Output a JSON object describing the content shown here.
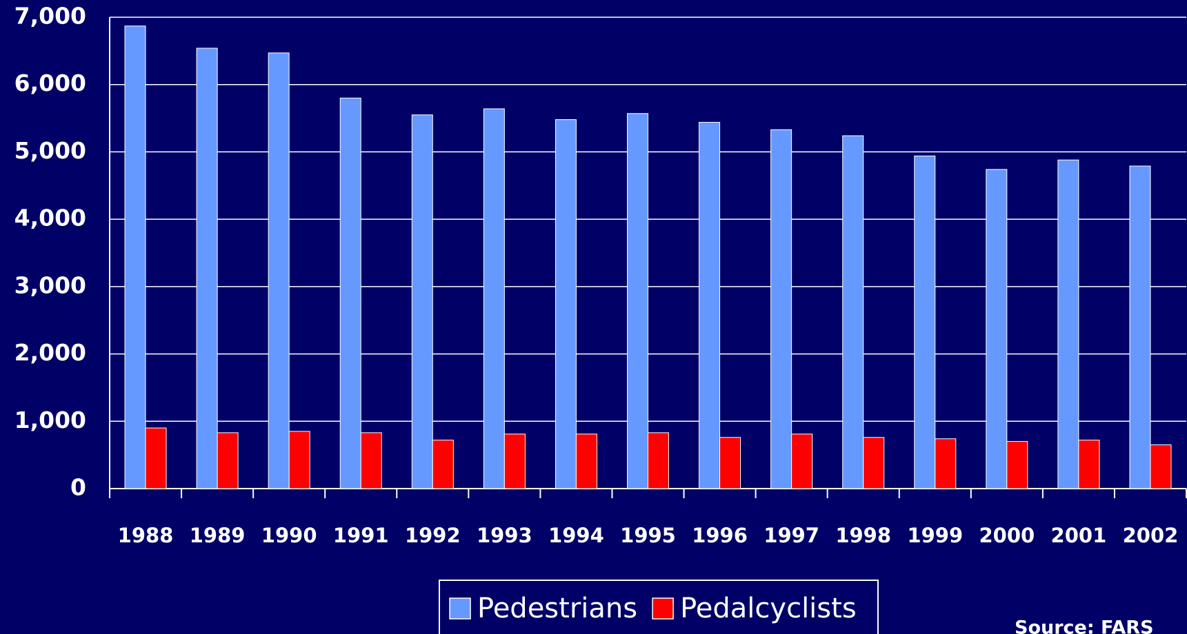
{
  "chart_data": {
    "type": "bar",
    "categories": [
      "1988",
      "1989",
      "1990",
      "1991",
      "1992",
      "1993",
      "1994",
      "1995",
      "1996",
      "1997",
      "1998",
      "1999",
      "2000",
      "2001",
      "2002"
    ],
    "series": [
      {
        "name": "Pedestrians",
        "color": "#6699ff",
        "values": [
          6870,
          6540,
          6470,
          5800,
          5550,
          5640,
          5480,
          5570,
          5440,
          5330,
          5240,
          4940,
          4740,
          4880,
          4790
        ]
      },
      {
        "name": "Pedalcyclists",
        "color": "#ff0000",
        "values": [
          900,
          830,
          850,
          830,
          720,
          810,
          810,
          830,
          760,
          810,
          760,
          740,
          700,
          720,
          650
        ]
      }
    ],
    "ylim": [
      0,
      7000
    ],
    "yticks": [
      0,
      {
        "value": 1000,
        "label": "1,000"
      },
      {
        "value": 2000,
        "label": "2,000"
      },
      {
        "value": 3000,
        "label": "3,000"
      },
      {
        "value": 4000,
        "label": "4,000"
      },
      {
        "value": 5000,
        "label": "5,000"
      },
      {
        "value": 6000,
        "label": "6,000"
      },
      {
        "value": 7000,
        "label": "7,000"
      }
    ],
    "grid": true,
    "legend": "bottom",
    "source": "Source:  FARS"
  }
}
